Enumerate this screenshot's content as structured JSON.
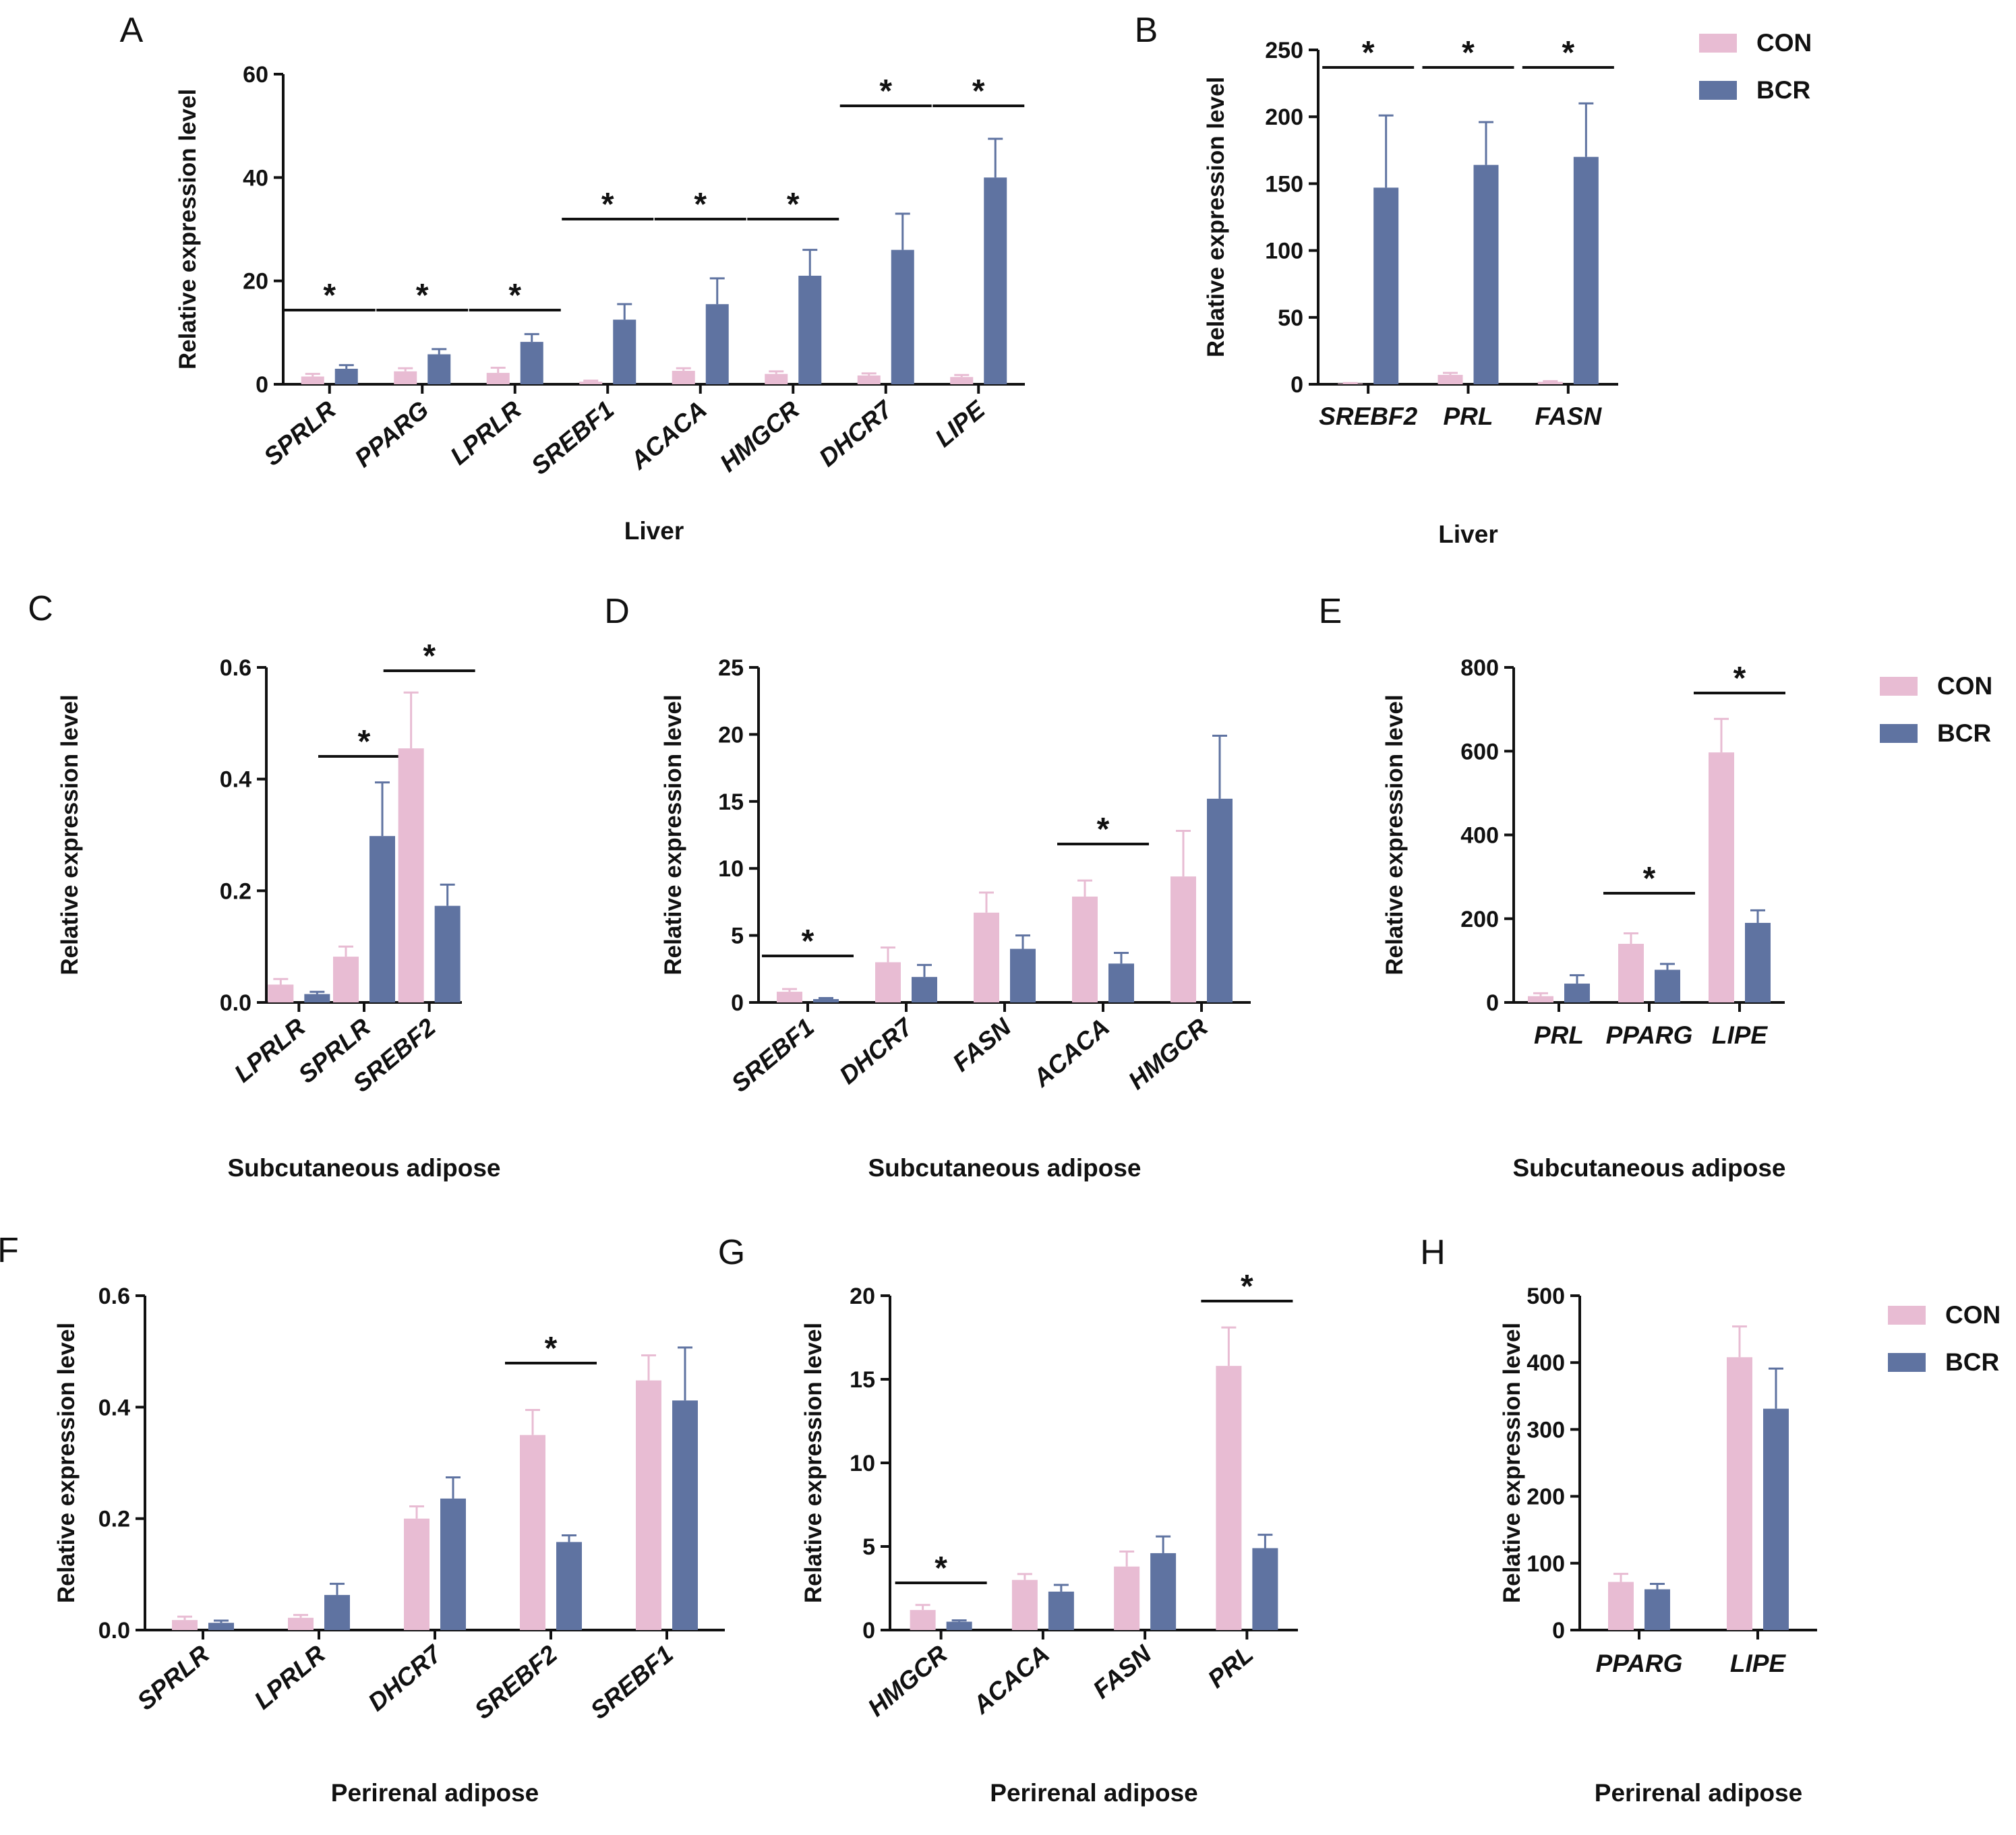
{
  "colors": {
    "con": "#E8BCD3",
    "bcr": "#5F73A1"
  },
  "legends": [
    {
      "name": "legend-top",
      "entries": [
        {
          "label": "CON",
          "color_key": "con"
        },
        {
          "label": "BCR",
          "color_key": "bcr"
        }
      ]
    },
    {
      "name": "legend-middle",
      "entries": [
        {
          "label": "CON",
          "color_key": "con"
        },
        {
          "label": "BCR",
          "color_key": "bcr"
        }
      ]
    },
    {
      "name": "legend-bottom",
      "entries": [
        {
          "label": "CON",
          "color_key": "con"
        },
        {
          "label": "BCR",
          "color_key": "bcr"
        }
      ]
    }
  ],
  "chart_data": [
    {
      "panel": "A",
      "type": "bar",
      "ylabel": "Relative expression level",
      "xlabel": "Liver",
      "ylim": [
        0,
        60
      ],
      "yticks": [
        "0",
        "20",
        "40",
        "60"
      ],
      "rotated": true,
      "categories": [
        "SPRLR",
        "PPARG",
        "LPRLR",
        "SREBF1",
        "ACACA",
        "HMGCR",
        "DHCR7",
        "LIPE"
      ],
      "series": [
        {
          "name": "CON",
          "values": [
            1.5,
            2.5,
            2.2,
            0.5,
            2.6,
            2.0,
            1.7,
            1.4
          ],
          "errors": [
            0.5,
            0.6,
            1.0,
            0.2,
            0.5,
            0.5,
            0.4,
            0.4
          ]
        },
        {
          "name": "BCR",
          "values": [
            3.0,
            5.8,
            8.2,
            12.5,
            15.5,
            21.0,
            26.0,
            40.0
          ],
          "errors": [
            0.7,
            1.0,
            1.5,
            3.0,
            5.0,
            5.0,
            7.0,
            7.5
          ]
        }
      ],
      "significance": [
        "*",
        "*",
        "*",
        "*",
        "*",
        "*",
        "*",
        "*"
      ]
    },
    {
      "panel": "B",
      "type": "bar",
      "ylabel": "Relative expression level",
      "xlabel": "Liver",
      "ylim": [
        0,
        250
      ],
      "yticks": [
        "0",
        "50",
        "100",
        "150",
        "200",
        "250"
      ],
      "rotated": false,
      "categories": [
        "SREBF2",
        "PRL",
        "FASN"
      ],
      "series": [
        {
          "name": "CON",
          "values": [
            0.6,
            7.0,
            1.8
          ],
          "errors": [
            0.3,
            1.5,
            0.5
          ]
        },
        {
          "name": "BCR",
          "values": [
            147,
            164,
            170
          ],
          "errors": [
            54,
            32,
            40
          ]
        }
      ],
      "significance": [
        "*",
        "*",
        "*"
      ]
    },
    {
      "panel": "C",
      "type": "bar",
      "ylabel": "Relative expression level",
      "xlabel": "Subcutaneous adipose",
      "ylim": [
        0,
        0.6
      ],
      "yticks": [
        "0.0",
        "0.2",
        "0.4",
        "0.6"
      ],
      "rotated": true,
      "categories": [
        "LPRLR",
        "SPRLR",
        "SREBF2"
      ],
      "series": [
        {
          "name": "CON",
          "values": [
            0.032,
            0.082,
            0.455
          ],
          "errors": [
            0.01,
            0.018,
            0.1
          ]
        },
        {
          "name": "BCR",
          "values": [
            0.015,
            0.298,
            0.173
          ],
          "errors": [
            0.004,
            0.096,
            0.038
          ]
        }
      ],
      "significance": [
        "",
        "*",
        "*"
      ]
    },
    {
      "panel": "D",
      "type": "bar",
      "ylabel": "Relative expression level",
      "xlabel": "Subcutaneous adipose",
      "ylim": [
        0,
        25
      ],
      "yticks": [
        "0",
        "5",
        "10",
        "15",
        "20",
        "25"
      ],
      "rotated": true,
      "categories": [
        "SREBF1",
        "DHCR7",
        "FASN",
        "ACACA",
        "HMGCR"
      ],
      "series": [
        {
          "name": "CON",
          "values": [
            0.8,
            3.0,
            6.7,
            7.9,
            9.4
          ],
          "errors": [
            0.2,
            1.1,
            1.5,
            1.2,
            3.4
          ]
        },
        {
          "name": "BCR",
          "values": [
            0.25,
            1.9,
            4.0,
            2.9,
            15.2
          ],
          "errors": [
            0.08,
            0.9,
            1.0,
            0.8,
            4.7
          ]
        }
      ],
      "significance": [
        "*",
        "",
        "",
        "*",
        ""
      ]
    },
    {
      "panel": "E",
      "type": "bar",
      "ylabel": "Relative expression level",
      "xlabel": "Subcutaneous adipose",
      "ylim": [
        0,
        800
      ],
      "yticks": [
        "0",
        "200",
        "400",
        "600",
        "800"
      ],
      "rotated": false,
      "categories": [
        "PRL",
        "PPARG",
        "LIPE"
      ],
      "series": [
        {
          "name": "CON",
          "values": [
            15,
            140,
            597
          ],
          "errors": [
            7,
            25,
            80
          ]
        },
        {
          "name": "BCR",
          "values": [
            45,
            78,
            190
          ],
          "errors": [
            20,
            14,
            30
          ]
        }
      ],
      "significance": [
        "",
        "*",
        "*"
      ]
    },
    {
      "panel": "F",
      "type": "bar",
      "ylabel": "Relative expression level",
      "xlabel": "Perirenal adipose",
      "ylim": [
        0,
        0.6
      ],
      "yticks": [
        "0.0",
        "0.2",
        "0.4",
        "0.6"
      ],
      "rotated": true,
      "categories": [
        "SPRLR",
        "LPRLR",
        "DHCR7",
        "SREBF2",
        "SREBF1"
      ],
      "series": [
        {
          "name": "CON",
          "values": [
            0.018,
            0.022,
            0.2,
            0.35,
            0.448
          ],
          "errors": [
            0.006,
            0.005,
            0.022,
            0.045,
            0.045
          ]
        },
        {
          "name": "BCR",
          "values": [
            0.013,
            0.063,
            0.236,
            0.158,
            0.412
          ],
          "errors": [
            0.004,
            0.02,
            0.038,
            0.012,
            0.095
          ]
        }
      ],
      "significance": [
        "",
        "",
        "",
        "*",
        ""
      ]
    },
    {
      "panel": "G",
      "type": "bar",
      "ylabel": "Relative expression level",
      "xlabel": "Perirenal adipose",
      "ylim": [
        0,
        20
      ],
      "yticks": [
        "0",
        "5",
        "10",
        "15",
        "20"
      ],
      "rotated": true,
      "categories": [
        "HMGCR",
        "ACACA",
        "FASN",
        "PRL"
      ],
      "series": [
        {
          "name": "CON",
          "values": [
            1.2,
            3.0,
            3.8,
            15.8
          ],
          "errors": [
            0.3,
            0.35,
            0.9,
            2.3
          ]
        },
        {
          "name": "BCR",
          "values": [
            0.5,
            2.3,
            4.6,
            4.9
          ],
          "errors": [
            0.08,
            0.4,
            1.0,
            0.8
          ]
        }
      ],
      "significance": [
        "*",
        "",
        "",
        "*"
      ]
    },
    {
      "panel": "H",
      "type": "bar",
      "ylabel": "Relative expression level",
      "xlabel": "Perirenal adipose",
      "ylim": [
        0,
        500
      ],
      "yticks": [
        "0",
        "100",
        "200",
        "300",
        "400",
        "500"
      ],
      "rotated": false,
      "categories": [
        "PPARG",
        "LIPE"
      ],
      "series": [
        {
          "name": "CON",
          "values": [
            72,
            408
          ],
          "errors": [
            12,
            46
          ]
        },
        {
          "name": "BCR",
          "values": [
            61,
            331
          ],
          "errors": [
            8,
            60
          ]
        }
      ],
      "significance": [
        "",
        ""
      ]
    }
  ]
}
